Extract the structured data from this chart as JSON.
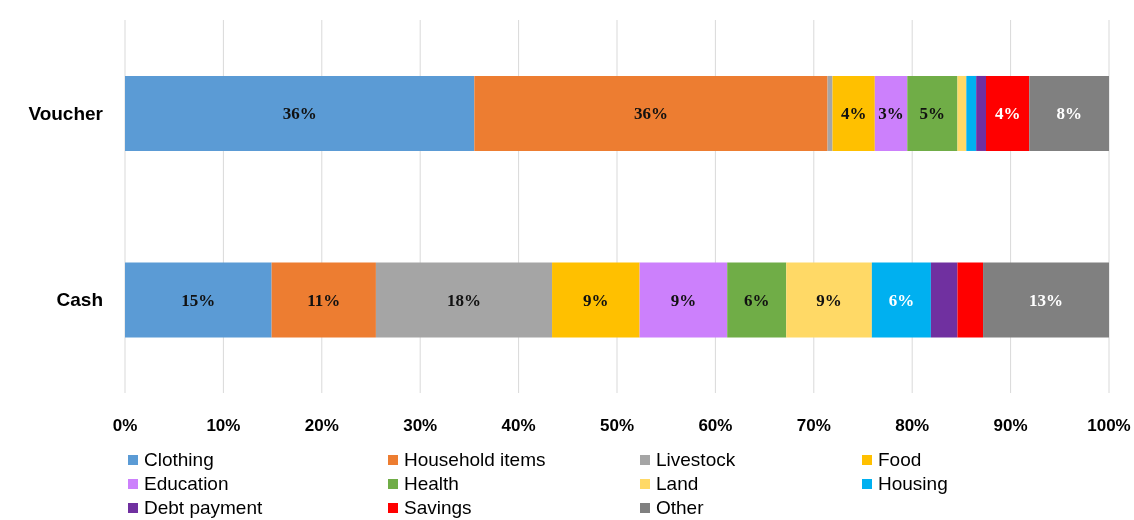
{
  "chart_data": {
    "type": "bar",
    "orientation": "horizontal",
    "stacked": true,
    "categories": [
      "Voucher",
      "Cash"
    ],
    "series": [
      {
        "name": "Clothing",
        "color": "#5b9bd5",
        "values": [
          35.5,
          14.9
        ],
        "value_labels": [
          "36%",
          "15%"
        ]
      },
      {
        "name": "Household items",
        "color": "#ed7d31",
        "values": [
          35.9,
          10.6
        ],
        "value_labels": [
          "36%",
          "11%"
        ]
      },
      {
        "name": "Livestock",
        "color": "#a5a5a5",
        "values": [
          0.5,
          17.9
        ],
        "value_labels": [
          null,
          "18%"
        ]
      },
      {
        "name": "Food",
        "color": "#ffc000",
        "values": [
          4.3,
          8.9
        ],
        "value_labels": [
          "4%",
          "9%"
        ]
      },
      {
        "name": "Education",
        "color": "#cc80fc",
        "values": [
          3.3,
          8.9
        ],
        "value_labels": [
          "3%",
          "9%"
        ]
      },
      {
        "name": "Health",
        "color": "#70ad47",
        "values": [
          5.1,
          6.0
        ],
        "value_labels": [
          "5%",
          "6%"
        ]
      },
      {
        "name": "Land",
        "color": "#ffd966",
        "values": [
          0.9,
          8.7
        ],
        "value_labels": [
          null,
          "9%"
        ]
      },
      {
        "name": "Housing",
        "color": "#00b0f0",
        "values": [
          1.0,
          6.0
        ],
        "value_labels": [
          null,
          "6%"
        ]
      },
      {
        "name": "Debt payment",
        "color": "#7030a0",
        "values": [
          1.0,
          2.7
        ],
        "value_labels": [
          null,
          null
        ]
      },
      {
        "name": "Savings",
        "color": "#ff0000",
        "values": [
          4.4,
          2.6
        ],
        "value_labels": [
          "4%",
          null
        ]
      },
      {
        "name": "Other",
        "color": "#808080",
        "values": [
          8.1,
          12.8
        ],
        "value_labels": [
          "8%",
          "13%"
        ]
      }
    ],
    "xlim": [
      0,
      100
    ],
    "xticks": [
      {
        "value": 0,
        "label": "0%"
      },
      {
        "value": 10,
        "label": "10%"
      },
      {
        "value": 20,
        "label": "20%"
      },
      {
        "value": 30,
        "label": "30%"
      },
      {
        "value": 40,
        "label": "40%"
      },
      {
        "value": 50,
        "label": "50%"
      },
      {
        "value": 60,
        "label": "60%"
      },
      {
        "value": 70,
        "label": "70%"
      },
      {
        "value": 80,
        "label": "80%"
      },
      {
        "value": 90,
        "label": "90%"
      },
      {
        "value": 100,
        "label": "100%"
      }
    ],
    "grid": "x",
    "legend": "bottom"
  }
}
